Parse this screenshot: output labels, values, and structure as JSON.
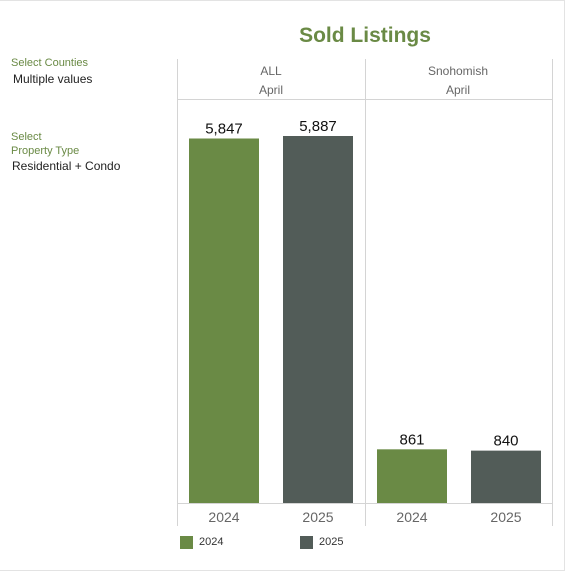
{
  "title": "Sold Listings",
  "filters": {
    "counties": {
      "label": "Select Counties",
      "value": "Multiple values"
    },
    "property_type": {
      "label_line1": "Select",
      "label_line2": "Property Type",
      "value": "Residential + Condo"
    }
  },
  "colors": {
    "y2024": "#6a8a45",
    "y2025": "#525c58",
    "title": "#6a8a45"
  },
  "panels": [
    {
      "region": "ALL",
      "month": "April"
    },
    {
      "region": "Snohomish",
      "month": "April"
    }
  ],
  "legend": [
    {
      "label": "2024",
      "color": "#6a8a45"
    },
    {
      "label": "2025",
      "color": "#525c58"
    }
  ],
  "chart_data": {
    "type": "bar",
    "title": "Sold Listings",
    "categories": [
      "2024",
      "2025"
    ],
    "ylim": [
      0,
      5887
    ],
    "panels": [
      {
        "region": "ALL",
        "month": "April",
        "values": [
          5847,
          5887
        ],
        "labels": [
          "5,847",
          "5,887"
        ]
      },
      {
        "region": "Snohomish",
        "month": "April",
        "values": [
          861,
          840
        ],
        "labels": [
          "861",
          "840"
        ]
      }
    ],
    "grid": false,
    "legend_position": "bottom"
  }
}
